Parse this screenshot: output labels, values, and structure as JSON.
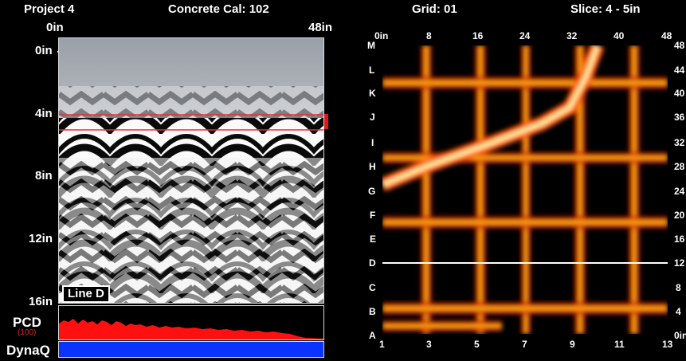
{
  "header": {
    "project": "Project 4",
    "calibration": "Concrete Cal: 102",
    "grid": "Grid: 01",
    "slice": "Slice: 4 - 5in"
  },
  "scan_panel": {
    "top_left_label": "0in",
    "top_right_label": "48in",
    "depth_ticks": [
      "0in",
      "4in",
      "8in",
      "12in",
      "16in"
    ],
    "line_label": "Line D",
    "slice_band_depth_in": [
      4,
      5
    ]
  },
  "pcd": {
    "label": "PCD",
    "value": "(100)",
    "fill_color": "#ff0000"
  },
  "dynaq": {
    "label": "DynaQ",
    "fill_color": "#0b33ff"
  },
  "slice_view": {
    "top_ticks": [
      "0in",
      "8",
      "16",
      "24",
      "32",
      "40",
      "48"
    ],
    "right_ticks": [
      "48",
      "44",
      "40",
      "36",
      "32",
      "28",
      "24",
      "20",
      "16",
      "12",
      "8",
      "4",
      "0in"
    ],
    "row_letters": [
      "M",
      "L",
      "K",
      "J",
      "I",
      "H",
      "G",
      "F",
      "E",
      "D",
      "C",
      "B",
      "A"
    ],
    "bottom_ticks": [
      "1",
      "3",
      "5",
      "7",
      "9",
      "11",
      "13"
    ],
    "selected_row": "D"
  }
}
